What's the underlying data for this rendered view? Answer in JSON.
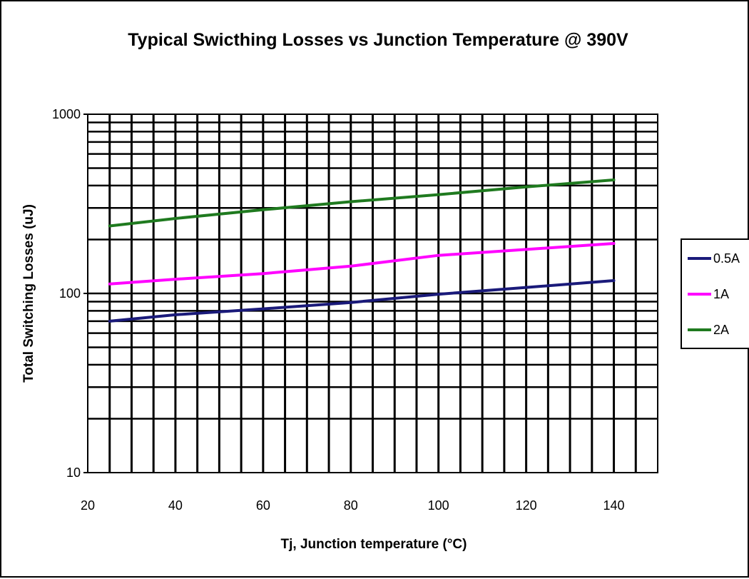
{
  "chart_data": {
    "type": "line",
    "title": "Typical Swicthing Losses vs Junction Temperature @ 390V",
    "xlabel": "Tj, Junction temperature (°C)",
    "ylabel": "Total Switching Losses (uJ)",
    "xlim": [
      20,
      150
    ],
    "ylim": [
      10,
      1000
    ],
    "yscale": "log",
    "xticks": [
      "20",
      "40",
      "60",
      "80",
      "100",
      "120",
      "140"
    ],
    "yticks": [
      "10",
      "100",
      "1000"
    ],
    "grid": true,
    "legend_position": "right",
    "x": [
      25,
      40,
      60,
      80,
      100,
      120,
      140
    ],
    "series": [
      {
        "name": "0.5A",
        "color": "#1a1a7a",
        "values": [
          70,
          76,
          82,
          89,
          99,
          108,
          118
        ]
      },
      {
        "name": "1A",
        "color": "#ff00ff",
        "values": [
          113,
          120,
          129,
          142,
          163,
          176,
          190
        ]
      },
      {
        "name": "2A",
        "color": "#1f7a1f",
        "values": [
          238,
          262,
          293,
          325,
          356,
          393,
          430
        ]
      }
    ]
  }
}
